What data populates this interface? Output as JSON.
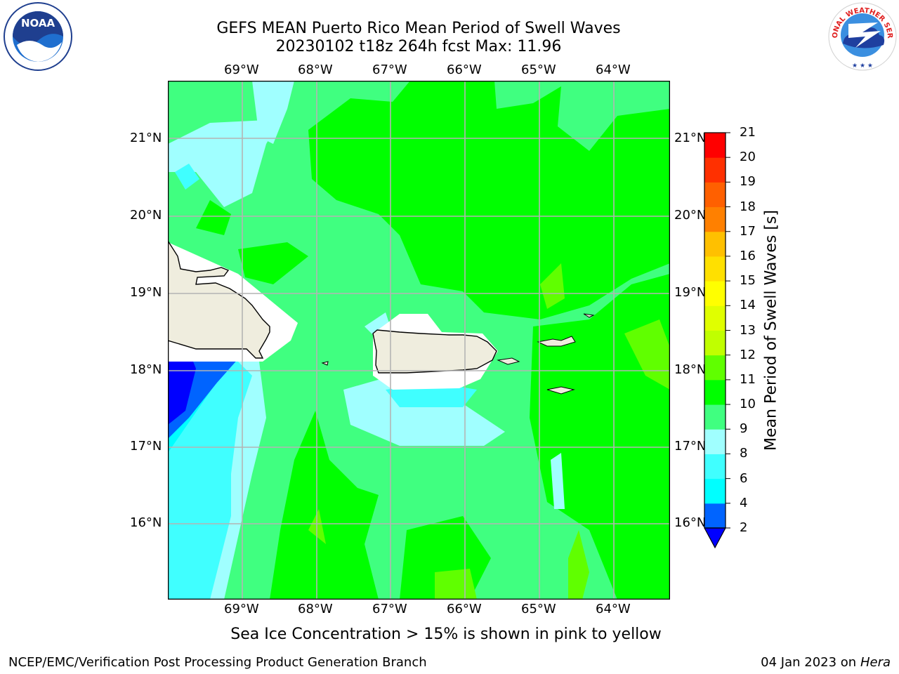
{
  "title": {
    "line1": "GEFS MEAN Puerto Rico Mean Period of Swell Waves",
    "line2": "20230102 t18z 264h fcst   Max: 11.96"
  },
  "map": {
    "lon_labels": [
      "69°W",
      "68°W",
      "67°W",
      "66°W",
      "65°W",
      "64°W"
    ],
    "lat_labels": [
      "21°N",
      "20°N",
      "19°N",
      "18°N",
      "17°N",
      "16°N"
    ],
    "land_color": "#efedde",
    "grid_color": "#b4b4b4"
  },
  "colorbar": {
    "label": "Mean Period of Swell Waves [s]",
    "ticks": [
      "2",
      "4",
      "6",
      "8",
      "9",
      "10",
      "11",
      "12",
      "13",
      "14",
      "15",
      "16",
      "17",
      "18",
      "19",
      "20",
      "21"
    ],
    "colors": [
      "#0000ff",
      "#0064ff",
      "#00ffff",
      "#40ffff",
      "#a0ffff",
      "#40ff80",
      "#00ff00",
      "#60ff00",
      "#c0ff00",
      "#e0ff00",
      "#ffff00",
      "#ffe000",
      "#ffc000",
      "#ff8000",
      "#ff6000",
      "#ff3000",
      "#ff0000"
    ]
  },
  "logos": {
    "noaa_text": "NOAA",
    "noaa_ring": "NATIONAL OCEANIC AND ATMOSPHERIC ADMINISTRATION · U.S. DEPARTMENT OF COMMERCE",
    "nws_ring": "NATIONAL WEATHER SERVICE"
  },
  "caption": "Sea Ice Concentration > 15% is shown in pink to yellow",
  "footer": {
    "left": "NCEP/EMC/Verification Post Processing Product Generation Branch",
    "date": "04 Jan 2023 on ",
    "host": "Hera"
  }
}
